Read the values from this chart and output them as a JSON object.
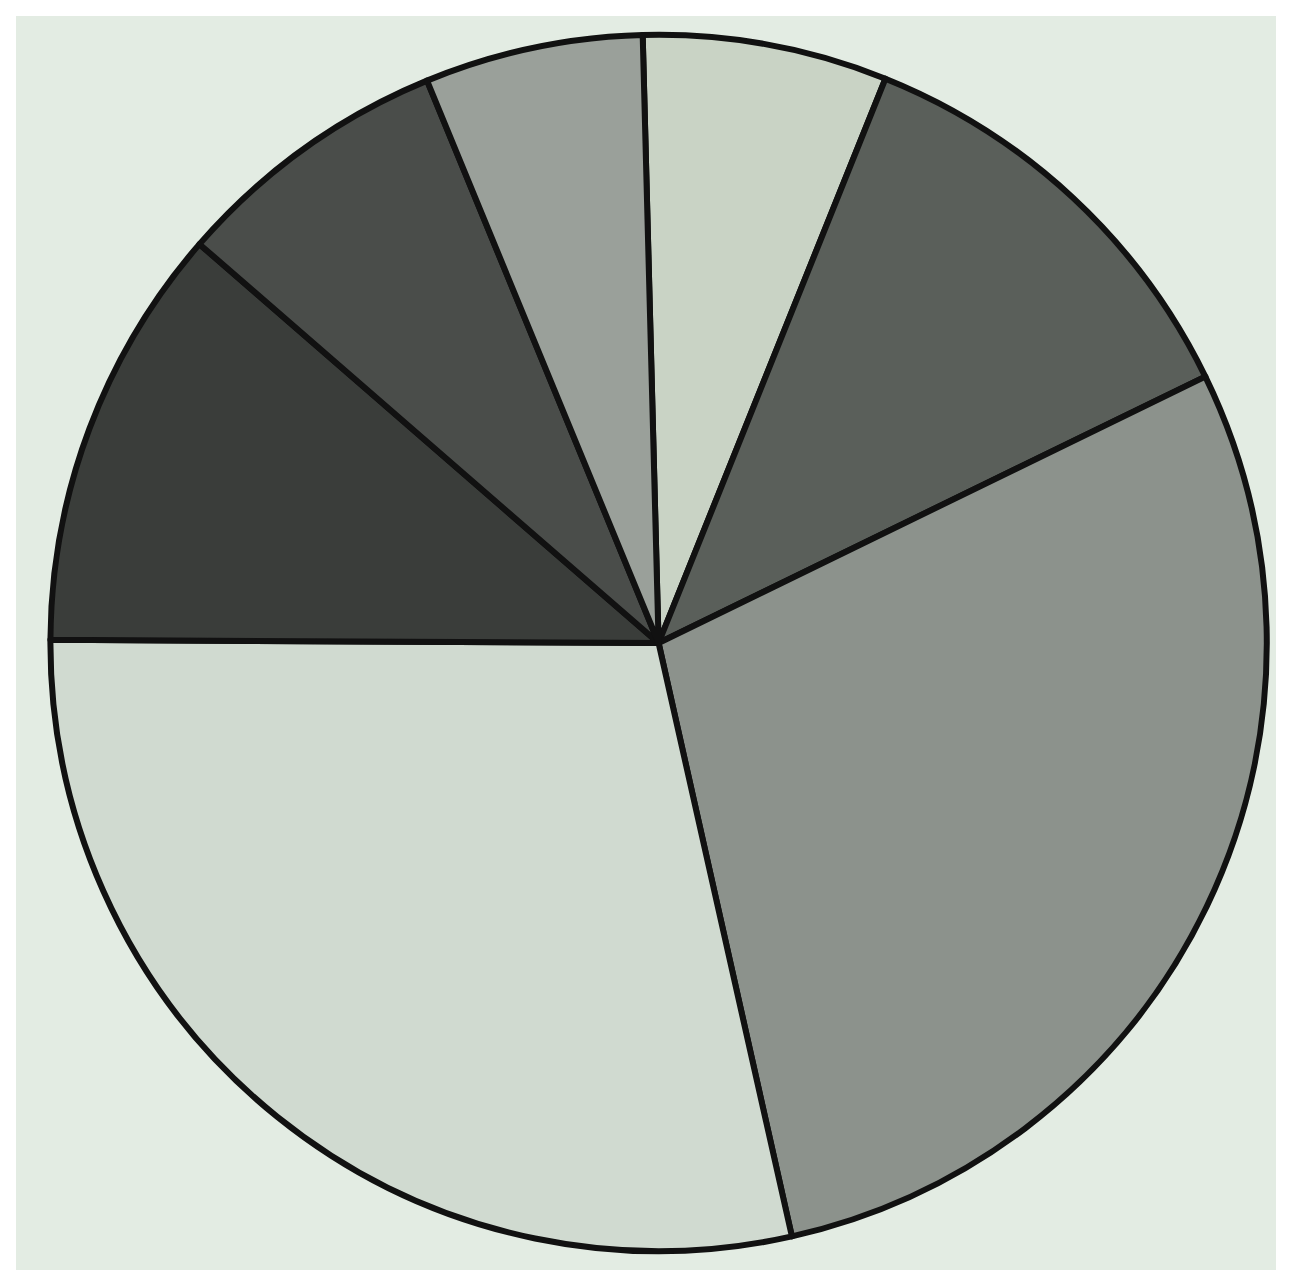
{
  "chart_data": {
    "type": "pie",
    "categories": [
      null,
      null,
      null,
      null,
      null,
      null,
      null
    ],
    "values": [
      6.5,
      11.7,
      28.7,
      28.6,
      11.3,
      7.4,
      5.8
    ],
    "colors": [
      "#c9d3c5",
      "#5a5f5a",
      "#8c928c",
      "#d0dad0",
      "#3a3d3a",
      "#4a4d4a",
      "#9aa09a"
    ]
  }
}
